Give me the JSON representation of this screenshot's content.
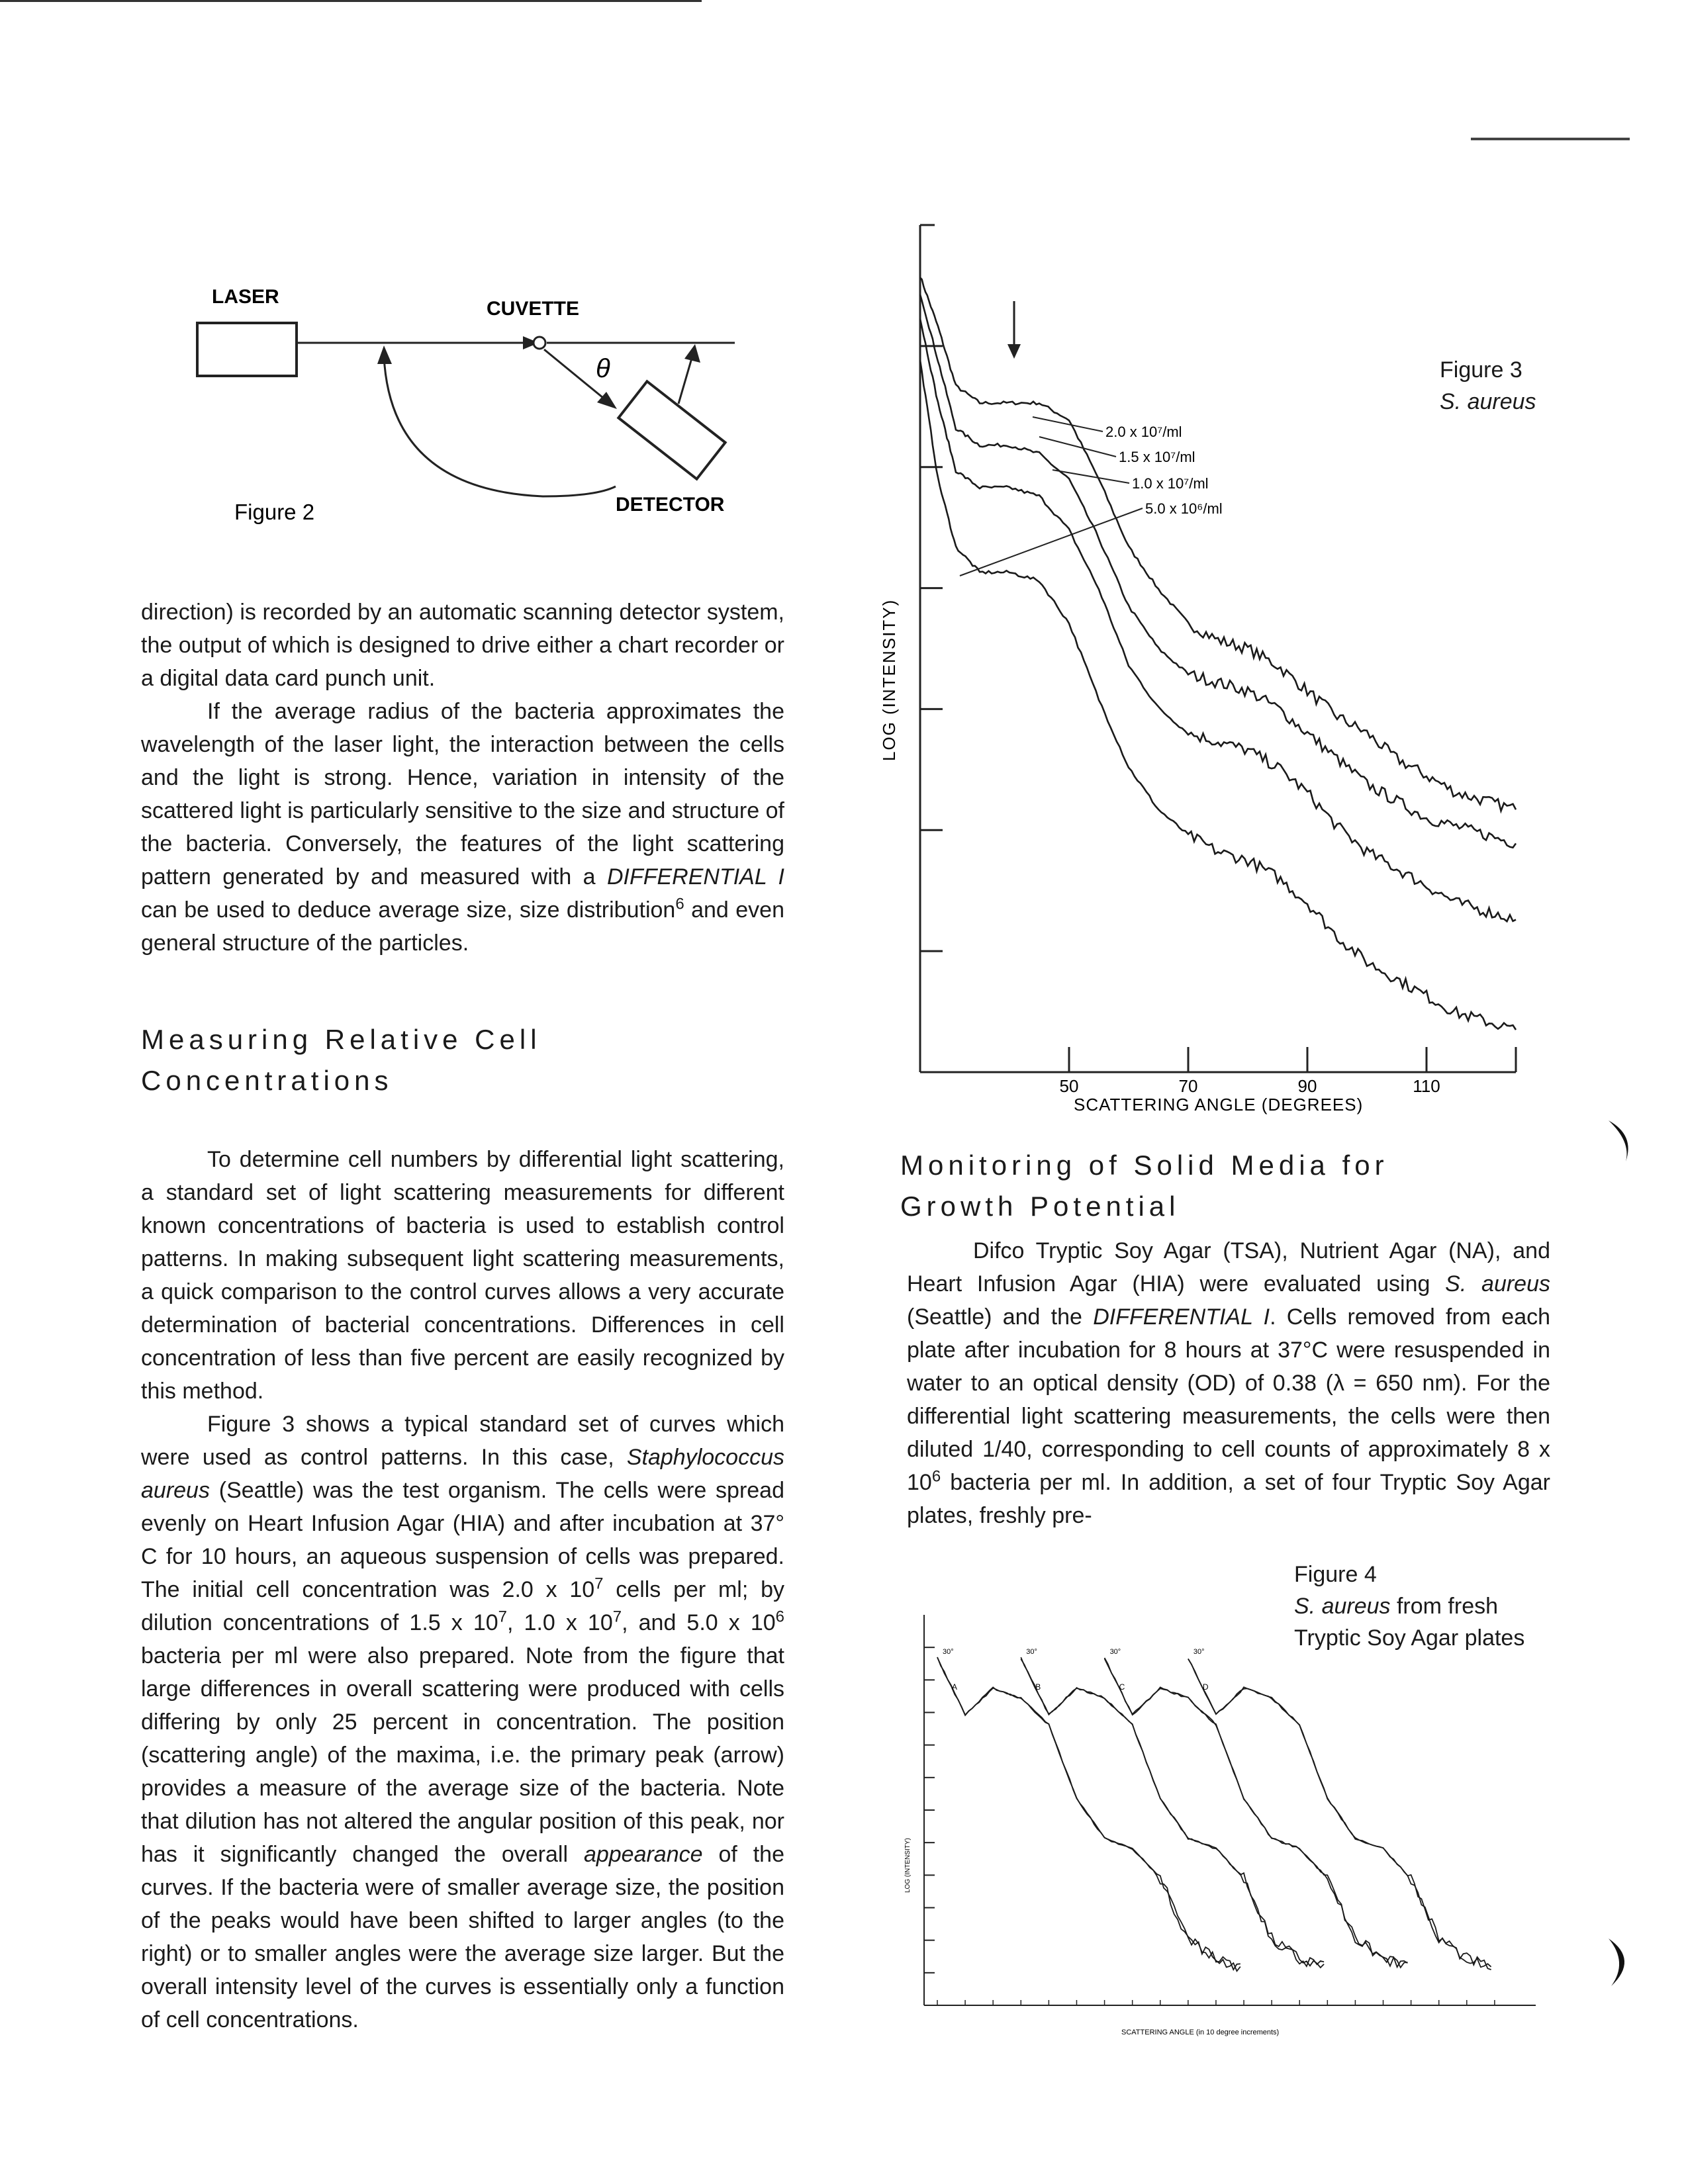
{
  "figure2": {
    "laser": "LASER",
    "cuvette": "CUVETTE",
    "theta": "θ",
    "detector": "DETECTOR",
    "caption": "Figure 2"
  },
  "left_column": {
    "para1": "direction) is recorded by an automatic scanning detector system, the output of which is designed to drive either a chart recorder or a digital data card punch unit.",
    "para2_a": "If the average radius of the bacteria approximates the wavelength of the laser light, the interaction between the cells and the light is strong. Hence, variation in intensity of the scattered light is particularly sensitive to the size and structure of the bacteria. Conversely, the features of the light scattering pattern generated by and measured with a ",
    "para2_em": "DIFFERENTIAL I",
    "para2_b": " can be used to deduce average size, size distribution",
    "para2_sup": "6",
    "para2_c": " and even general structure of the particles.",
    "heading": "Measuring Relative Cell Concentrations",
    "para3": "To determine cell numbers by differential light scattering, a standard set of light scattering measurements for different known concentrations of bacteria is used to establish control patterns. In making subsequent light scattering measurements, a quick comparison to the control curves allows a very accurate determination of bacterial concentrations. Differences in cell concentration of less than five percent are easily recognized by this method.",
    "para4_a": "Figure 3 shows a typical standard set of curves which were used as control patterns. In this case, ",
    "para4_em1": "Staphylococcus aureus",
    "para4_b": " (Seattle) was the test organism. The cells were spread evenly on Heart Infusion Agar (HIA) and after incubation at 37° C for 10 hours, an aqueous suspension of cells was prepared. The initial cell concentration was 2.0 x 10",
    "para4_sup1": "7",
    "para4_c": " cells per ml; by dilution concentrations of 1.5 x 10",
    "para4_sup2": "7",
    "para4_d": ", 1.0 x 10",
    "para4_sup3": "7",
    "para4_e": ", and 5.0 x 10",
    "para4_sup4": "6",
    "para4_f": " bacteria per ml were also prepared. Note from the figure that large differences in overall scattering were produced with cells differing by only 25 percent in concentration. The position (scattering angle) of the maxima, i.e. the primary peak (arrow) provides a measure of the average size of the bacteria. Note that dilution has not altered the angular position of this peak, nor has it significantly changed the overall ",
    "para4_em2": "appearance",
    "para4_g": " of the curves. If the bacteria were of smaller average size, the position of the peaks would have been shifted to larger angles (to the right) or to smaller angles were the average size larger. But the overall intensity level of the curves is essentially only a function of cell concentrations."
  },
  "right_column": {
    "heading": "Monitoring of Solid Media for Growth Potential",
    "para1_a": "Difco Tryptic Soy Agar (TSA), Nutrient Agar (NA), and Heart Infusion Agar (HIA) were evaluated using ",
    "para1_em1": "S. aureus",
    "para1_b": " (Seattle) and the ",
    "para1_em2": "DIFFERENTIAL I",
    "para1_c": ". Cells removed from each plate after incubation for 8 hours at 37°C were resuspended in water to an optical density (OD) of 0.38 (λ = 650 nm). For the differential light scattering measurements, the cells were then diluted 1/40, corresponding to cell counts of approximately 8 x 10",
    "para1_sup": "6",
    "para1_d": " bacteria per ml. In addition, a set of four Tryptic Soy Agar plates, freshly pre-"
  },
  "figure3": {
    "caption_line1": "Figure 3",
    "caption_line2": "S. aureus",
    "ylabel": "LOG (INTENSITY)",
    "xlabel": "SCATTERING ANGLE (DEGREES)",
    "series_labels": [
      "2.0 x 10⁷/ml",
      "1.5 x 10⁷/ml",
      "1.0 x 10⁷/ml",
      "5.0 x 10⁶/ml"
    ]
  },
  "figure4": {
    "caption_line1": "Figure 4",
    "caption_line2_em": "S. aureus",
    "caption_line2_rest": " from fresh",
    "caption_line3": "Tryptic Soy Agar plates",
    "ylabel": "LOG (INTENSITY)",
    "xlabel": "SCATTERING ANGLE (in 10 degree increments)",
    "curve_letters": [
      "A",
      "B",
      "C",
      "D"
    ],
    "start_angle_label": "30°"
  },
  "chart_data": [
    {
      "type": "line",
      "title": "",
      "xlabel": "SCATTERING ANGLE (DEGREES)",
      "ylabel": "LOG (INTENSITY)",
      "x_ticks": [
        50,
        70,
        90,
        110
      ],
      "xlim": [
        25,
        125
      ],
      "ylim": [
        0,
        10
      ],
      "x": [
        25,
        28,
        31,
        35,
        40,
        45,
        50,
        55,
        60,
        65,
        70,
        75,
        80,
        85,
        90,
        95,
        100,
        105,
        110,
        115,
        120,
        125
      ],
      "series": [
        {
          "name": "2.0 x 10⁷/ml",
          "values": [
            9.4,
            8.8,
            8.1,
            7.9,
            7.9,
            7.9,
            7.7,
            7.0,
            6.2,
            5.7,
            5.3,
            5.1,
            5.0,
            4.8,
            4.5,
            4.2,
            4.0,
            3.7,
            3.5,
            3.3,
            3.2,
            3.1
          ]
        },
        {
          "name": "1.5 x 10⁷/ml",
          "values": [
            9.2,
            8.4,
            7.6,
            7.4,
            7.4,
            7.3,
            7.0,
            6.3,
            5.5,
            5.0,
            4.7,
            4.6,
            4.5,
            4.3,
            4.0,
            3.7,
            3.4,
            3.2,
            3.0,
            2.9,
            2.8,
            2.7
          ]
        },
        {
          "name": "1.0 x 10⁷/ml",
          "values": [
            8.9,
            7.9,
            7.1,
            6.9,
            6.9,
            6.8,
            6.4,
            5.7,
            4.8,
            4.3,
            4.0,
            3.9,
            3.8,
            3.6,
            3.3,
            2.9,
            2.6,
            2.4,
            2.2,
            2.0,
            1.9,
            1.8
          ]
        },
        {
          "name": "5.0 x 10⁶/ml",
          "values": [
            8.4,
            7.0,
            6.2,
            5.9,
            5.9,
            5.8,
            5.3,
            4.4,
            3.6,
            3.1,
            2.8,
            2.6,
            2.5,
            2.3,
            2.0,
            1.6,
            1.3,
            1.1,
            0.9,
            0.7,
            0.6,
            0.5
          ]
        }
      ]
    },
    {
      "type": "line",
      "title": "",
      "xlabel": "SCATTERING ANGLE (in 10 degree increments)",
      "ylabel": "LOG (INTENSITY)",
      "x_ticks_note": "offset curves A–D, each starting at 30°",
      "series": [
        {
          "name": "A",
          "x": [
            0,
            1,
            2,
            3,
            4,
            5,
            6,
            7,
            8,
            9,
            10,
            11
          ],
          "values": [
            10,
            8.3,
            9.1,
            8.8,
            8.0,
            5.8,
            4.6,
            4.3,
            3.4,
            1.6,
            1.0,
            0.7
          ]
        },
        {
          "name": "B",
          "x": [
            3,
            4,
            5,
            6,
            7,
            8,
            9,
            10,
            11,
            12,
            13,
            14
          ],
          "values": [
            10,
            8.3,
            9.1,
            8.8,
            8.0,
            5.8,
            4.6,
            4.3,
            3.4,
            1.6,
            1.0,
            0.7
          ]
        },
        {
          "name": "C",
          "x": [
            6,
            7,
            8,
            9,
            10,
            11,
            12,
            13,
            14,
            15,
            16,
            17
          ],
          "values": [
            10,
            8.3,
            9.1,
            8.8,
            8.0,
            5.8,
            4.6,
            4.3,
            3.4,
            1.6,
            1.0,
            0.7
          ]
        },
        {
          "name": "D",
          "x": [
            9,
            10,
            11,
            12,
            13,
            14,
            15,
            16,
            17,
            18,
            19,
            20
          ],
          "values": [
            10,
            8.3,
            9.1,
            8.8,
            8.0,
            5.8,
            4.6,
            4.3,
            3.4,
            1.6,
            1.0,
            0.7
          ]
        }
      ]
    }
  ]
}
